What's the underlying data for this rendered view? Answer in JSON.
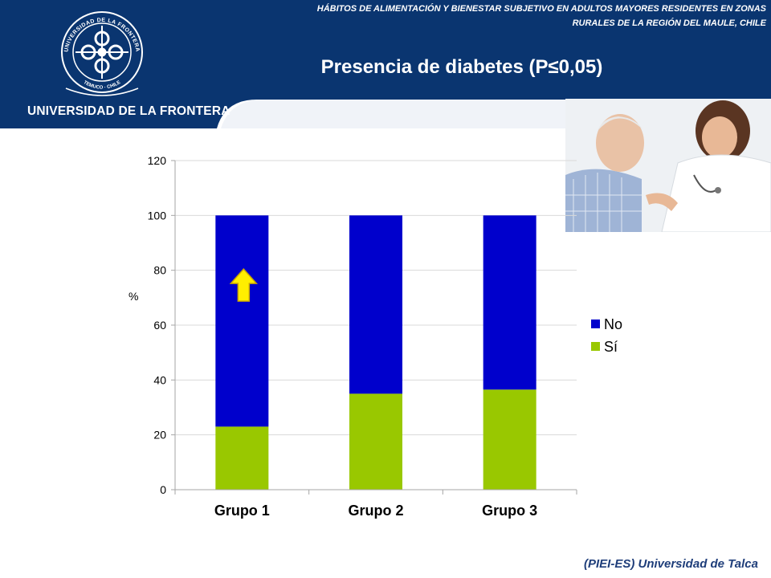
{
  "header": {
    "study_title_line1": "HÁBITOS DE ALIMENTACIÓN Y BIENESTAR SUBJETIVO EN ADULTOS MAYORES RESIDENTES EN ZONAS",
    "study_title_line2": "RURALES DE LA REGIÓN DEL MAULE, CHILE",
    "university_name": "UNIVERSIDAD DE LA FRONTERA",
    "slide_title": "Presencia de diabetes (P≤0,05)",
    "logo_text_top": "UNIVERSIDAD DE LA FRONTERA",
    "logo_text_bottom": "TEMUCO · CHILE",
    "brand_color": "#0a3570"
  },
  "chart_data": {
    "type": "bar",
    "stacked": true,
    "categories": [
      "Grupo 1",
      "Grupo 2",
      "Grupo 3"
    ],
    "series": [
      {
        "name": "Sí",
        "values": [
          23,
          35,
          36.5
        ],
        "color": "#99c800"
      },
      {
        "name": "No",
        "values": [
          77,
          65,
          63.5
        ],
        "color": "#0000cc"
      }
    ],
    "ylabel": "%",
    "ylim": [
      0,
      120
    ],
    "yticks": [
      0,
      20,
      40,
      60,
      80,
      100,
      120
    ],
    "grid": true,
    "legend": "right",
    "annotation": {
      "icon": "up-arrow-icon",
      "category": "Grupo 1",
      "y": 74,
      "color": "#ffee00"
    }
  },
  "footer": {
    "credit": "(PIEI-ES) Universidad de Talca"
  }
}
